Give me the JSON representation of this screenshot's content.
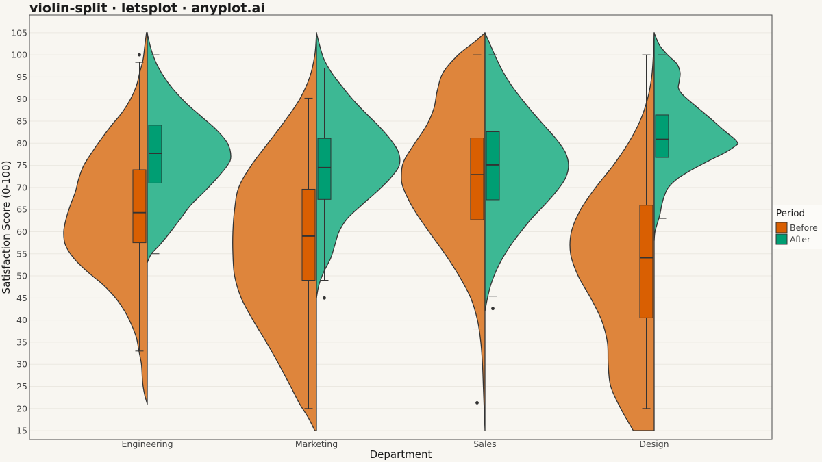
{
  "chart_data": {
    "type": "violin-split",
    "title": "violin-split · letsplot · anyplot.ai",
    "xlabel": "Department",
    "ylabel": "Satisfaction Score (0-100)",
    "ylim": [
      13,
      109
    ],
    "yticks": [
      15,
      20,
      25,
      30,
      35,
      40,
      45,
      50,
      55,
      60,
      65,
      70,
      75,
      80,
      85,
      90,
      95,
      100,
      105
    ],
    "grid": true,
    "legend": {
      "title": "Period",
      "placement": "right",
      "entries": [
        "Before",
        "After"
      ]
    },
    "colors": {
      "Before_violin": "#de853c",
      "After_violin": "#3db894",
      "Before_box": "#d95f02",
      "After_box": "#009e73",
      "outline": "#333333",
      "background": "#f8f6f1"
    },
    "categories": [
      "Engineering",
      "Marketing",
      "Sales",
      "Design"
    ],
    "series": [
      {
        "name": "Before",
        "groups": [
          {
            "category": "Engineering",
            "violin_range": [
              21,
              105
            ],
            "density": [
              [
                21,
                0.0
              ],
              [
                23,
                0.03
              ],
              [
                25,
                0.05
              ],
              [
                27,
                0.06
              ],
              [
                30,
                0.07
              ],
              [
                33,
                0.1
              ],
              [
                36,
                0.13
              ],
              [
                39,
                0.19
              ],
              [
                42,
                0.27
              ],
              [
                45,
                0.38
              ],
              [
                48,
                0.53
              ],
              [
                51,
                0.72
              ],
              [
                54,
                0.88
              ],
              [
                57,
                0.98
              ],
              [
                60,
                1.0
              ],
              [
                63,
                0.97
              ],
              [
                66,
                0.92
              ],
              [
                69,
                0.86
              ],
              [
                72,
                0.82
              ],
              [
                75,
                0.76
              ],
              [
                78,
                0.66
              ],
              [
                81,
                0.55
              ],
              [
                84,
                0.43
              ],
              [
                87,
                0.3
              ],
              [
                90,
                0.2
              ],
              [
                93,
                0.13
              ],
              [
                96,
                0.09
              ],
              [
                99,
                0.05
              ],
              [
                102,
                0.03
              ],
              [
                105,
                0.01
              ]
            ],
            "box": {
              "whisker_low": 33,
              "q1": 57.5,
              "median": 64.3,
              "q3": 74.0,
              "whisker_high": 98.3
            },
            "outliers": [
              100
            ]
          },
          {
            "category": "Marketing",
            "violin_range": [
              15,
              105
            ],
            "density": [
              [
                15,
                0.02
              ],
              [
                18,
                0.1
              ],
              [
                21,
                0.2
              ],
              [
                25,
                0.31
              ],
              [
                30,
                0.45
              ],
              [
                35,
                0.6
              ],
              [
                40,
                0.76
              ],
              [
                45,
                0.9
              ],
              [
                50,
                0.98
              ],
              [
                55,
                1.0
              ],
              [
                60,
                1.0
              ],
              [
                65,
                0.98
              ],
              [
                70,
                0.93
              ],
              [
                75,
                0.78
              ],
              [
                80,
                0.58
              ],
              [
                85,
                0.38
              ],
              [
                90,
                0.2
              ],
              [
                95,
                0.08
              ],
              [
                100,
                0.02
              ],
              [
                105,
                0.0
              ]
            ],
            "box": {
              "whisker_low": 20,
              "q1": 49.0,
              "median": 59.0,
              "q3": 69.6,
              "whisker_high": 90.2
            },
            "outliers": []
          },
          {
            "category": "Sales",
            "violin_range": [
              15,
              105
            ],
            "density": [
              [
                15,
                0.0
              ],
              [
                20,
                0.01
              ],
              [
                25,
                0.02
              ],
              [
                30,
                0.03
              ],
              [
                35,
                0.05
              ],
              [
                40,
                0.09
              ],
              [
                45,
                0.17
              ],
              [
                50,
                0.31
              ],
              [
                55,
                0.48
              ],
              [
                60,
                0.67
              ],
              [
                65,
                0.85
              ],
              [
                70,
                0.98
              ],
              [
                73,
                1.0
              ],
              [
                76,
                0.97
              ],
              [
                80,
                0.84
              ],
              [
                84,
                0.7
              ],
              [
                88,
                0.61
              ],
              [
                92,
                0.57
              ],
              [
                96,
                0.5
              ],
              [
                100,
                0.32
              ],
              [
                103,
                0.12
              ],
              [
                105,
                0.0
              ]
            ],
            "box": {
              "whisker_low": 38,
              "q1": 62.7,
              "median": 72.9,
              "q3": 81.2,
              "whisker_high": 100.0
            },
            "outliers": [
              21.3
            ]
          },
          {
            "category": "Design",
            "violin_range": [
              15,
              105
            ],
            "density": [
              [
                15,
                0.25
              ],
              [
                20,
                0.4
              ],
              [
                25,
                0.52
              ],
              [
                30,
                0.55
              ],
              [
                35,
                0.56
              ],
              [
                40,
                0.63
              ],
              [
                45,
                0.76
              ],
              [
                50,
                0.91
              ],
              [
                55,
                1.0
              ],
              [
                60,
                0.99
              ],
              [
                65,
                0.88
              ],
              [
                70,
                0.7
              ],
              [
                75,
                0.49
              ],
              [
                80,
                0.31
              ],
              [
                85,
                0.17
              ],
              [
                90,
                0.08
              ],
              [
                95,
                0.03
              ],
              [
                100,
                0.01
              ],
              [
                105,
                0.0
              ]
            ],
            "box": {
              "whisker_low": 20,
              "q1": 40.5,
              "median": 54.1,
              "q3": 66.0,
              "whisker_high": 100.0
            },
            "outliers": []
          }
        ]
      },
      {
        "name": "After",
        "groups": [
          {
            "category": "Engineering",
            "violin_range": [
              53,
              105
            ],
            "density": [
              [
                53,
                0.0
              ],
              [
                55,
                0.05
              ],
              [
                57,
                0.15
              ],
              [
                60,
                0.28
              ],
              [
                63,
                0.4
              ],
              [
                66,
                0.52
              ],
              [
                69,
                0.68
              ],
              [
                72,
                0.83
              ],
              [
                75,
                0.96
              ],
              [
                77,
                1.0
              ],
              [
                80,
                0.96
              ],
              [
                83,
                0.83
              ],
              [
                86,
                0.65
              ],
              [
                89,
                0.47
              ],
              [
                92,
                0.32
              ],
              [
                95,
                0.2
              ],
              [
                98,
                0.11
              ],
              [
                101,
                0.05
              ],
              [
                104,
                0.01
              ],
              [
                105,
                0.0
              ]
            ],
            "box": {
              "whisker_low": 55,
              "q1": 71.0,
              "median": 77.7,
              "q3": 84.1,
              "whisker_high": 100.0
            },
            "outliers": []
          },
          {
            "category": "Marketing",
            "violin_range": [
              45,
              105
            ],
            "density": [
              [
                45,
                0.0
              ],
              [
                48,
                0.03
              ],
              [
                51,
                0.09
              ],
              [
                54,
                0.17
              ],
              [
                57,
                0.22
              ],
              [
                60,
                0.27
              ],
              [
                63,
                0.37
              ],
              [
                66,
                0.54
              ],
              [
                69,
                0.72
              ],
              [
                72,
                0.88
              ],
              [
                75,
                0.99
              ],
              [
                78,
                0.98
              ],
              [
                81,
                0.88
              ],
              [
                84,
                0.74
              ],
              [
                87,
                0.58
              ],
              [
                90,
                0.43
              ],
              [
                93,
                0.3
              ],
              [
                96,
                0.18
              ],
              [
                99,
                0.09
              ],
              [
                102,
                0.04
              ],
              [
                105,
                0.0
              ]
            ],
            "box": {
              "whisker_low": 49,
              "q1": 67.3,
              "median": 74.5,
              "q3": 81.1,
              "whisker_high": 97.0
            },
            "outliers": [
              45.0
            ]
          },
          {
            "category": "Sales",
            "violin_range": [
              42,
              105
            ],
            "density": [
              [
                42,
                0.0
              ],
              [
                45,
                0.03
              ],
              [
                48,
                0.07
              ],
              [
                51,
                0.13
              ],
              [
                54,
                0.21
              ],
              [
                57,
                0.31
              ],
              [
                60,
                0.43
              ],
              [
                63,
                0.56
              ],
              [
                66,
                0.71
              ],
              [
                69,
                0.85
              ],
              [
                72,
                0.96
              ],
              [
                75,
                1.0
              ],
              [
                78,
                0.96
              ],
              [
                81,
                0.85
              ],
              [
                84,
                0.71
              ],
              [
                87,
                0.57
              ],
              [
                90,
                0.44
              ],
              [
                93,
                0.32
              ],
              [
                96,
                0.22
              ],
              [
                99,
                0.14
              ],
              [
                102,
                0.07
              ],
              [
                105,
                0.0
              ]
            ],
            "box": {
              "whisker_low": 45.4,
              "q1": 67.2,
              "median": 75.1,
              "q3": 82.6,
              "whisker_high": 100.0
            },
            "outliers": [
              42.6
            ]
          },
          {
            "category": "Design",
            "violin_range": [
              58,
              105
            ],
            "density": [
              [
                58,
                0.0
              ],
              [
                60,
                0.01
              ],
              [
                62,
                0.04
              ],
              [
                64,
                0.07
              ],
              [
                66,
                0.09
              ],
              [
                68,
                0.12
              ],
              [
                70,
                0.17
              ],
              [
                72,
                0.28
              ],
              [
                74,
                0.45
              ],
              [
                76,
                0.65
              ],
              [
                78,
                0.86
              ],
              [
                79.5,
                0.98
              ],
              [
                80,
                1.0
              ],
              [
                81,
                0.96
              ],
              [
                83,
                0.83
              ],
              [
                86,
                0.65
              ],
              [
                89,
                0.46
              ],
              [
                91,
                0.34
              ],
              [
                92.5,
                0.29
              ],
              [
                94,
                0.3
              ],
              [
                96,
                0.31
              ],
              [
                98,
                0.27
              ],
              [
                100,
                0.16
              ],
              [
                102,
                0.07
              ],
              [
                104,
                0.02
              ],
              [
                105,
                0.0
              ]
            ],
            "box": {
              "whisker_low": 63,
              "q1": 76.8,
              "median": 80.9,
              "q3": 86.4,
              "whisker_high": 100.0
            },
            "outliers": []
          }
        ]
      }
    ]
  }
}
